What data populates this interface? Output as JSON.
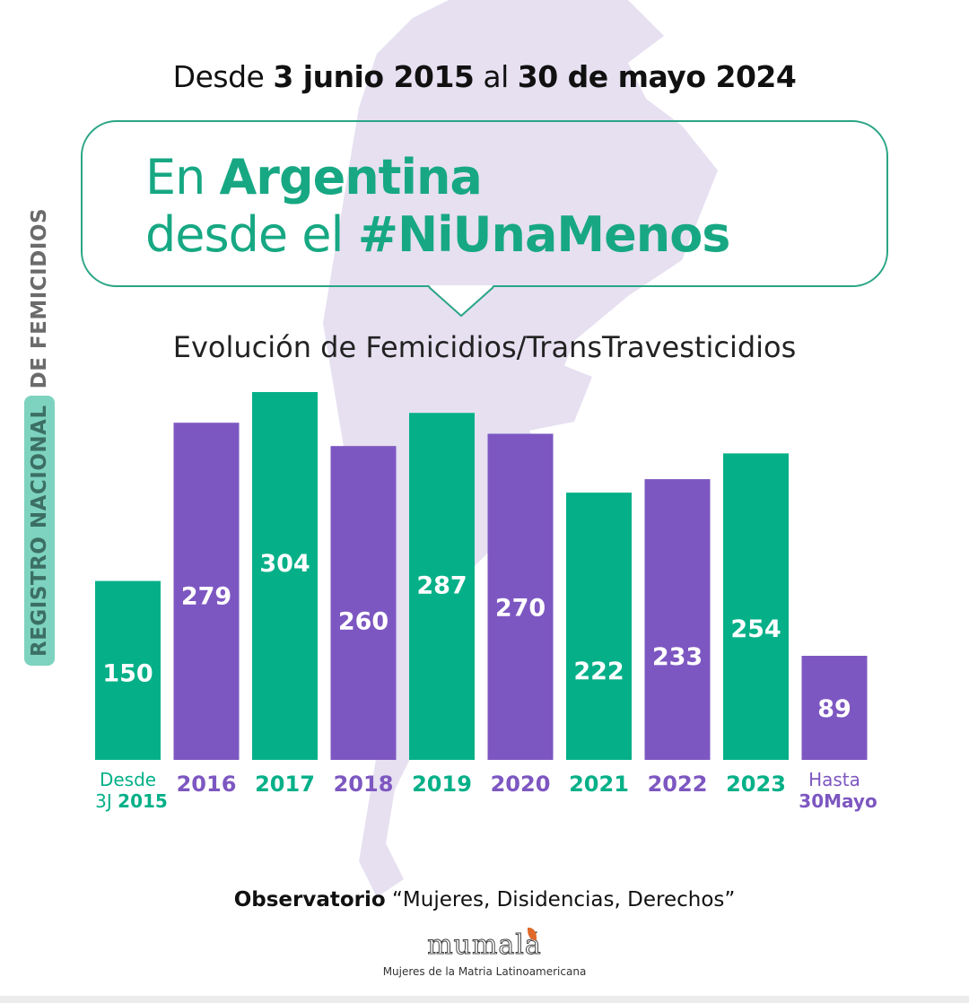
{
  "header": {
    "date_prefix": "Desde ",
    "date_start": "3 junio 2015",
    "date_mid": " al ",
    "date_end": "30 de mayo 2024"
  },
  "headline": {
    "line1_light": "En ",
    "line1_bold": "Argentina",
    "line2_light": "desde el ",
    "line2_bold": "#NiUnaMenos"
  },
  "side_label": {
    "highlight": "REGISTRO NACIONAL",
    "rest": "DE FEMICIDIOS"
  },
  "colors": {
    "green": "#05b088",
    "purple": "#7d57c1",
    "map": "#e4def0",
    "bubble_border": "#2aa586"
  },
  "chart_data": {
    "type": "bar",
    "title": "Evolución de Femicidios/TransTravesticidios",
    "xlabel": "",
    "ylabel": "",
    "grid": false,
    "ylim": [
      0,
      304
    ],
    "categories": [
      "Desde 3J 2015",
      "2016",
      "2017",
      "2018",
      "2019",
      "2020",
      "2021",
      "2022",
      "2023",
      "Hasta 30Mayo"
    ],
    "category_labels": [
      {
        "top": "Desde",
        "bottom_light": "3J ",
        "bottom_bold": "2015",
        "color": "green"
      },
      {
        "top": "",
        "bottom_light": "",
        "bottom_bold": "2016",
        "color": "purple"
      },
      {
        "top": "",
        "bottom_light": "",
        "bottom_bold": "2017",
        "color": "green"
      },
      {
        "top": "",
        "bottom_light": "",
        "bottom_bold": "2018",
        "color": "purple"
      },
      {
        "top": "",
        "bottom_light": "",
        "bottom_bold": "2019",
        "color": "green"
      },
      {
        "top": "",
        "bottom_light": "",
        "bottom_bold": "2020",
        "color": "purple"
      },
      {
        "top": "",
        "bottom_light": "",
        "bottom_bold": "2021",
        "color": "green"
      },
      {
        "top": "",
        "bottom_light": "",
        "bottom_bold": "2022",
        "color": "purple"
      },
      {
        "top": "",
        "bottom_light": "",
        "bottom_bold": "2023",
        "color": "green"
      },
      {
        "top": "Hasta",
        "bottom_light": "",
        "bottom_bold": "30Mayo",
        "color": "purple"
      }
    ],
    "values": [
      150,
      279,
      304,
      260,
      287,
      270,
      222,
      233,
      254,
      89
    ],
    "bar_colors": [
      "green",
      "purple",
      "green",
      "purple",
      "green",
      "purple",
      "green",
      "purple",
      "green",
      "purple"
    ]
  },
  "footer": {
    "bold": "Observatorio",
    "text": " “Mujeres, Disidencias, Derechos”",
    "logo": "mumalá",
    "logo_sub": "Mujeres de la Matria Latinoamericana"
  }
}
